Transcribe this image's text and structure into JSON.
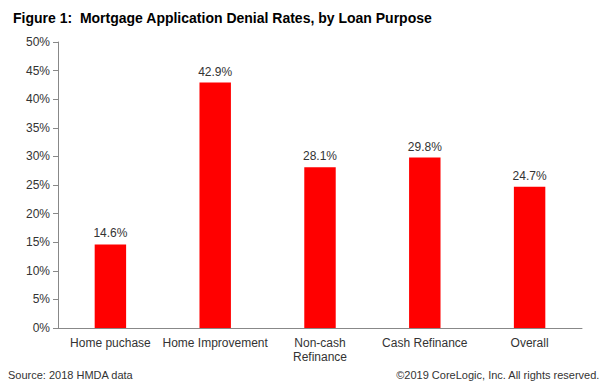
{
  "chart_data": {
    "type": "bar",
    "title": "Figure 1:  Mortgage Application Denial Rates, by Loan Purpose",
    "categories": [
      "Home puchase",
      "Home Improvement",
      "Non-cash\nRefinance",
      "Cash Refinance",
      "Overall"
    ],
    "values": [
      14.6,
      42.9,
      28.1,
      29.8,
      24.7
    ],
    "value_labels": [
      "14.6%",
      "42.9%",
      "28.1%",
      "29.8%",
      "24.7%"
    ],
    "color": "#ff0000",
    "ylim": [
      0,
      50
    ],
    "yticks": [
      {
        "value": 0,
        "label": "0%"
      },
      {
        "value": 5,
        "label": "5%"
      },
      {
        "value": 10,
        "label": "10%"
      },
      {
        "value": 15,
        "label": "15%"
      },
      {
        "value": 20,
        "label": "20%"
      },
      {
        "value": 25,
        "label": "25%"
      },
      {
        "value": 30,
        "label": "30%"
      },
      {
        "value": 35,
        "label": "35%"
      },
      {
        "value": 40,
        "label": "40%"
      },
      {
        "value": 45,
        "label": "45%"
      },
      {
        "value": 50,
        "label": "50%"
      }
    ],
    "grid": false,
    "data_labels": true,
    "annotations": [
      "Source: 2018 HMDA data",
      "©2019 CoreLogic, Inc. All rights reserved."
    ]
  }
}
